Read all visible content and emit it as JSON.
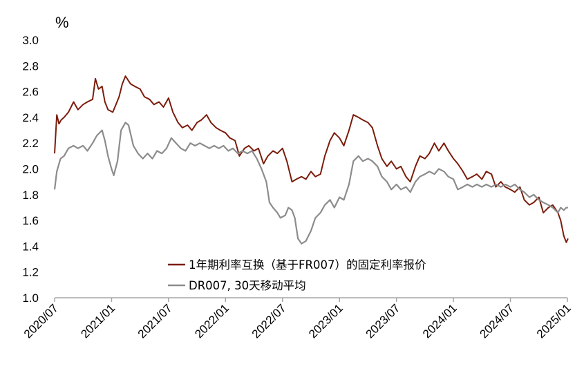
{
  "chart_data": {
    "type": "line",
    "unit_label": "%",
    "ylim": [
      1.0,
      3.0
    ],
    "y_ticks": [
      "3.0",
      "2.8",
      "2.6",
      "2.4",
      "2.2",
      "2.0",
      "1.8",
      "1.6",
      "1.4",
      "1.2",
      "1.0"
    ],
    "x_range": [
      "2020-07",
      "2025-01"
    ],
    "x_ticks": [
      "2020/07",
      "2021/01",
      "2021/07",
      "2022/01",
      "2022/07",
      "2023/01",
      "2023/07",
      "2024/01",
      "2024/07",
      "2025/01"
    ],
    "grid": false,
    "legend_position": "bottom-center",
    "series": [
      {
        "name": "1年期利率互换（基于FR007）的固定利率报价",
        "color": "#7B1C0B",
        "points": [
          [
            "2020-07-01",
            2.12
          ],
          [
            "2020-07-08",
            2.42
          ],
          [
            "2020-07-15",
            2.35
          ],
          [
            "2020-07-22",
            2.38
          ],
          [
            "2020-08-01",
            2.4
          ],
          [
            "2020-08-15",
            2.44
          ],
          [
            "2020-09-01",
            2.52
          ],
          [
            "2020-09-15",
            2.46
          ],
          [
            "2020-10-01",
            2.5
          ],
          [
            "2020-10-15",
            2.52
          ],
          [
            "2020-11-01",
            2.54
          ],
          [
            "2020-11-10",
            2.7
          ],
          [
            "2020-11-20",
            2.62
          ],
          [
            "2020-12-01",
            2.64
          ],
          [
            "2020-12-10",
            2.52
          ],
          [
            "2020-12-20",
            2.46
          ],
          [
            "2021-01-05",
            2.44
          ],
          [
            "2021-01-15",
            2.5
          ],
          [
            "2021-01-25",
            2.56
          ],
          [
            "2021-02-05",
            2.66
          ],
          [
            "2021-02-15",
            2.72
          ],
          [
            "2021-03-01",
            2.66
          ],
          [
            "2021-03-15",
            2.64
          ],
          [
            "2021-04-01",
            2.62
          ],
          [
            "2021-04-15",
            2.56
          ],
          [
            "2021-05-01",
            2.54
          ],
          [
            "2021-05-15",
            2.5
          ],
          [
            "2021-06-01",
            2.52
          ],
          [
            "2021-06-15",
            2.48
          ],
          [
            "2021-07-01",
            2.55
          ],
          [
            "2021-07-15",
            2.44
          ],
          [
            "2021-08-01",
            2.36
          ],
          [
            "2021-08-15",
            2.32
          ],
          [
            "2021-09-01",
            2.34
          ],
          [
            "2021-09-15",
            2.3
          ],
          [
            "2021-10-01",
            2.36
          ],
          [
            "2021-10-15",
            2.38
          ],
          [
            "2021-11-01",
            2.42
          ],
          [
            "2021-11-15",
            2.36
          ],
          [
            "2021-12-01",
            2.32
          ],
          [
            "2021-12-15",
            2.3
          ],
          [
            "2022-01-01",
            2.28
          ],
          [
            "2022-01-15",
            2.24
          ],
          [
            "2022-02-01",
            2.22
          ],
          [
            "2022-02-15",
            2.1
          ],
          [
            "2022-03-01",
            2.16
          ],
          [
            "2022-03-15",
            2.18
          ],
          [
            "2022-04-01",
            2.14
          ],
          [
            "2022-04-15",
            2.16
          ],
          [
            "2022-05-01",
            2.04
          ],
          [
            "2022-05-15",
            2.1
          ],
          [
            "2022-06-01",
            2.14
          ],
          [
            "2022-06-15",
            2.12
          ],
          [
            "2022-07-01",
            2.16
          ],
          [
            "2022-07-15",
            2.06
          ],
          [
            "2022-08-01",
            1.9
          ],
          [
            "2022-08-15",
            1.92
          ],
          [
            "2022-09-01",
            1.94
          ],
          [
            "2022-09-15",
            1.92
          ],
          [
            "2022-10-01",
            1.98
          ],
          [
            "2022-10-15",
            1.94
          ],
          [
            "2022-11-01",
            1.96
          ],
          [
            "2022-11-15",
            2.1
          ],
          [
            "2022-12-01",
            2.22
          ],
          [
            "2022-12-15",
            2.28
          ],
          [
            "2023-01-01",
            2.24
          ],
          [
            "2023-01-15",
            2.18
          ],
          [
            "2023-02-01",
            2.3
          ],
          [
            "2023-02-15",
            2.42
          ],
          [
            "2023-03-01",
            2.4
          ],
          [
            "2023-03-15",
            2.38
          ],
          [
            "2023-04-01",
            2.36
          ],
          [
            "2023-04-15",
            2.32
          ],
          [
            "2023-05-01",
            2.18
          ],
          [
            "2023-05-15",
            2.08
          ],
          [
            "2023-06-01",
            2.02
          ],
          [
            "2023-06-15",
            2.06
          ],
          [
            "2023-07-01",
            2.0
          ],
          [
            "2023-07-15",
            2.02
          ],
          [
            "2023-08-01",
            1.94
          ],
          [
            "2023-08-15",
            1.9
          ],
          [
            "2023-09-01",
            2.02
          ],
          [
            "2023-09-15",
            2.1
          ],
          [
            "2023-10-01",
            2.08
          ],
          [
            "2023-10-15",
            2.12
          ],
          [
            "2023-11-01",
            2.2
          ],
          [
            "2023-11-15",
            2.14
          ],
          [
            "2023-12-01",
            2.2
          ],
          [
            "2023-12-15",
            2.14
          ],
          [
            "2024-01-01",
            2.08
          ],
          [
            "2024-01-15",
            2.04
          ],
          [
            "2024-02-01",
            1.98
          ],
          [
            "2024-02-15",
            1.92
          ],
          [
            "2024-03-01",
            1.94
          ],
          [
            "2024-03-15",
            1.96
          ],
          [
            "2024-04-01",
            1.92
          ],
          [
            "2024-04-15",
            1.98
          ],
          [
            "2024-05-01",
            1.96
          ],
          [
            "2024-05-15",
            1.86
          ],
          [
            "2024-06-01",
            1.9
          ],
          [
            "2024-06-15",
            1.86
          ],
          [
            "2024-07-01",
            1.84
          ],
          [
            "2024-07-15",
            1.82
          ],
          [
            "2024-08-01",
            1.86
          ],
          [
            "2024-08-15",
            1.76
          ],
          [
            "2024-09-01",
            1.72
          ],
          [
            "2024-09-15",
            1.74
          ],
          [
            "2024-10-01",
            1.78
          ],
          [
            "2024-10-15",
            1.66
          ],
          [
            "2024-11-01",
            1.7
          ],
          [
            "2024-11-15",
            1.72
          ],
          [
            "2024-12-01",
            1.66
          ],
          [
            "2024-12-10",
            1.6
          ],
          [
            "2024-12-20",
            1.48
          ],
          [
            "2024-12-28",
            1.43
          ],
          [
            "2025-01-03",
            1.46
          ]
        ]
      },
      {
        "name": "DR007, 30天移动平均",
        "color": "#8C8C8C",
        "points": [
          [
            "2020-07-01",
            1.84
          ],
          [
            "2020-07-08",
            1.98
          ],
          [
            "2020-07-20",
            2.08
          ],
          [
            "2020-08-01",
            2.1
          ],
          [
            "2020-08-15",
            2.16
          ],
          [
            "2020-09-01",
            2.18
          ],
          [
            "2020-09-15",
            2.16
          ],
          [
            "2020-10-01",
            2.18
          ],
          [
            "2020-10-15",
            2.14
          ],
          [
            "2020-11-01",
            2.2
          ],
          [
            "2020-11-15",
            2.26
          ],
          [
            "2020-12-01",
            2.3
          ],
          [
            "2020-12-10",
            2.22
          ],
          [
            "2020-12-20",
            2.1
          ],
          [
            "2021-01-01",
            2.0
          ],
          [
            "2021-01-08",
            1.95
          ],
          [
            "2021-01-20",
            2.06
          ],
          [
            "2021-02-01",
            2.3
          ],
          [
            "2021-02-15",
            2.36
          ],
          [
            "2021-02-25",
            2.34
          ],
          [
            "2021-03-10",
            2.18
          ],
          [
            "2021-03-25",
            2.12
          ],
          [
            "2021-04-10",
            2.08
          ],
          [
            "2021-04-25",
            2.12
          ],
          [
            "2021-05-10",
            2.08
          ],
          [
            "2021-05-25",
            2.14
          ],
          [
            "2021-06-10",
            2.12
          ],
          [
            "2021-06-25",
            2.16
          ],
          [
            "2021-07-10",
            2.24
          ],
          [
            "2021-07-25",
            2.2
          ],
          [
            "2021-08-10",
            2.16
          ],
          [
            "2021-08-25",
            2.14
          ],
          [
            "2021-09-10",
            2.2
          ],
          [
            "2021-09-25",
            2.18
          ],
          [
            "2021-10-10",
            2.2
          ],
          [
            "2021-10-25",
            2.18
          ],
          [
            "2021-11-10",
            2.16
          ],
          [
            "2021-11-25",
            2.18
          ],
          [
            "2021-12-10",
            2.16
          ],
          [
            "2021-12-25",
            2.18
          ],
          [
            "2022-01-10",
            2.14
          ],
          [
            "2022-01-25",
            2.16
          ],
          [
            "2022-02-10",
            2.12
          ],
          [
            "2022-02-25",
            2.14
          ],
          [
            "2022-03-10",
            2.12
          ],
          [
            "2022-03-25",
            2.14
          ],
          [
            "2022-04-10",
            2.08
          ],
          [
            "2022-04-25",
            2.0
          ],
          [
            "2022-05-10",
            1.9
          ],
          [
            "2022-05-20",
            1.74
          ],
          [
            "2022-06-01",
            1.7
          ],
          [
            "2022-06-15",
            1.66
          ],
          [
            "2022-06-25",
            1.62
          ],
          [
            "2022-07-10",
            1.64
          ],
          [
            "2022-07-20",
            1.7
          ],
          [
            "2022-08-01",
            1.68
          ],
          [
            "2022-08-10",
            1.62
          ],
          [
            "2022-08-20",
            1.46
          ],
          [
            "2022-09-01",
            1.42
          ],
          [
            "2022-09-15",
            1.44
          ],
          [
            "2022-10-01",
            1.52
          ],
          [
            "2022-10-15",
            1.62
          ],
          [
            "2022-11-01",
            1.66
          ],
          [
            "2022-11-15",
            1.72
          ],
          [
            "2022-12-01",
            1.76
          ],
          [
            "2022-12-15",
            1.7
          ],
          [
            "2023-01-01",
            1.78
          ],
          [
            "2023-01-15",
            1.76
          ],
          [
            "2023-02-01",
            1.88
          ],
          [
            "2023-02-15",
            2.06
          ],
          [
            "2023-03-01",
            2.1
          ],
          [
            "2023-03-15",
            2.06
          ],
          [
            "2023-04-01",
            2.08
          ],
          [
            "2023-04-15",
            2.06
          ],
          [
            "2023-05-01",
            2.02
          ],
          [
            "2023-05-15",
            1.94
          ],
          [
            "2023-06-01",
            1.9
          ],
          [
            "2023-06-15",
            1.84
          ],
          [
            "2023-07-01",
            1.88
          ],
          [
            "2023-07-15",
            1.84
          ],
          [
            "2023-08-01",
            1.86
          ],
          [
            "2023-08-15",
            1.82
          ],
          [
            "2023-09-01",
            1.9
          ],
          [
            "2023-09-15",
            1.94
          ],
          [
            "2023-10-01",
            1.96
          ],
          [
            "2023-10-15",
            1.98
          ],
          [
            "2023-11-01",
            1.96
          ],
          [
            "2023-11-15",
            2.0
          ],
          [
            "2023-12-01",
            1.98
          ],
          [
            "2023-12-15",
            1.94
          ],
          [
            "2024-01-01",
            1.92
          ],
          [
            "2024-01-15",
            1.84
          ],
          [
            "2024-02-01",
            1.86
          ],
          [
            "2024-02-15",
            1.88
          ],
          [
            "2024-03-01",
            1.86
          ],
          [
            "2024-03-15",
            1.88
          ],
          [
            "2024-04-01",
            1.86
          ],
          [
            "2024-04-15",
            1.88
          ],
          [
            "2024-05-01",
            1.86
          ],
          [
            "2024-05-15",
            1.88
          ],
          [
            "2024-06-01",
            1.86
          ],
          [
            "2024-06-15",
            1.88
          ],
          [
            "2024-07-01",
            1.86
          ],
          [
            "2024-07-15",
            1.88
          ],
          [
            "2024-08-01",
            1.84
          ],
          [
            "2024-08-15",
            1.82
          ],
          [
            "2024-09-01",
            1.78
          ],
          [
            "2024-09-15",
            1.8
          ],
          [
            "2024-10-01",
            1.76
          ],
          [
            "2024-10-15",
            1.74
          ],
          [
            "2024-11-01",
            1.72
          ],
          [
            "2024-11-15",
            1.7
          ],
          [
            "2024-12-01",
            1.66
          ],
          [
            "2024-12-10",
            1.7
          ],
          [
            "2024-12-20",
            1.68
          ],
          [
            "2024-12-28",
            1.7
          ],
          [
            "2025-01-03",
            1.7
          ]
        ]
      }
    ]
  }
}
